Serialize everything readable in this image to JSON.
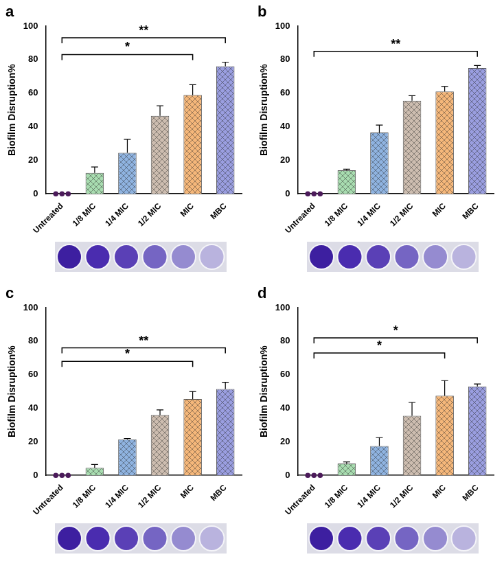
{
  "chart_data": [
    {
      "panel": "a",
      "type": "bar",
      "categories": [
        "Untreated",
        "1/8 MIC",
        "1/4 MIC",
        "1/2 MIC",
        "MIC",
        "MBC"
      ],
      "values": [
        0,
        12.5,
        24.5,
        46.5,
        59,
        76
      ],
      "errors": [
        null,
        3.5,
        8,
        6,
        6,
        2.5
      ],
      "replicates": {
        "category": "Untreated",
        "values": [
          0,
          0,
          0
        ]
      },
      "colors": [
        "#4b1a5a",
        "#a8dcb0",
        "#8fb3e0",
        "#cdbdb0",
        "#f5b77a",
        "#9a9ee0"
      ],
      "y_label": "Biofilm Disruption%",
      "ylim": [
        0,
        100
      ],
      "yticks": [
        0,
        20,
        40,
        60,
        80,
        100
      ],
      "grid": false,
      "annotations": [
        {
          "from": "Untreated",
          "to": "MIC",
          "y": 83,
          "text": "*"
        },
        {
          "from": "Untreated",
          "to": "MBC",
          "y": 93,
          "text": "**"
        }
      ]
    },
    {
      "panel": "b",
      "type": "bar",
      "categories": [
        "Untreated",
        "1/8 MIC",
        "1/4 MIC",
        "1/2 MIC",
        "MIC",
        "MBC"
      ],
      "values": [
        0,
        14,
        36.5,
        55.5,
        61,
        75
      ],
      "errors": [
        null,
        0.7,
        4.5,
        3,
        3,
        1.5
      ],
      "replicates": {
        "category": "Untreated",
        "values": [
          0,
          0,
          0
        ]
      },
      "colors": [
        "#4b1a5a",
        "#a8dcb0",
        "#8fb3e0",
        "#cdbdb0",
        "#f5b77a",
        "#9a9ee0"
      ],
      "y_label": "Biofilm Disruption%",
      "ylim": [
        0,
        100
      ],
      "yticks": [
        0,
        20,
        40,
        60,
        80,
        100
      ],
      "grid": false,
      "annotations": [
        {
          "from": "Untreated",
          "to": "MBC",
          "y": 85,
          "text": "**"
        }
      ]
    },
    {
      "panel": "c",
      "type": "bar",
      "categories": [
        "Untreated",
        "1/8 MIC",
        "1/4 MIC",
        "1/2 MIC",
        "MIC",
        "MBC"
      ],
      "values": [
        0,
        4.5,
        21.5,
        36,
        45.5,
        51.5
      ],
      "errors": [
        null,
        2,
        0.5,
        3,
        4.5,
        4
      ],
      "replicates": {
        "category": "Untreated",
        "values": [
          0,
          0,
          0
        ]
      },
      "colors": [
        "#4b1a5a",
        "#a8dcb0",
        "#8fb3e0",
        "#cdbdb0",
        "#f5b77a",
        "#9a9ee0"
      ],
      "y_label": "Biofilm Disruption%",
      "ylim": [
        0,
        100
      ],
      "yticks": [
        0,
        20,
        40,
        60,
        80,
        100
      ],
      "grid": false,
      "annotations": [
        {
          "from": "Untreated",
          "to": "MIC",
          "y": 68,
          "text": "*"
        },
        {
          "from": "Untreated",
          "to": "MBC",
          "y": 76,
          "text": "**"
        }
      ]
    },
    {
      "panel": "d",
      "type": "bar",
      "categories": [
        "Untreated",
        "1/8 MIC",
        "1/4 MIC",
        "1/2 MIC",
        "MIC",
        "MBC"
      ],
      "values": [
        0,
        7,
        17.5,
        35.5,
        47.5,
        53
      ],
      "errors": [
        null,
        1,
        5,
        8,
        9,
        1.5
      ],
      "replicates": {
        "category": "Untreated",
        "values": [
          0,
          0,
          0
        ]
      },
      "colors": [
        "#4b1a5a",
        "#a8dcb0",
        "#8fb3e0",
        "#cdbdb0",
        "#f5b77a",
        "#9a9ee0"
      ],
      "y_label": "Biofilm Disruption%",
      "ylim": [
        0,
        100
      ],
      "yticks": [
        0,
        20,
        40,
        60,
        80,
        100
      ],
      "grid": false,
      "annotations": [
        {
          "from": "Untreated",
          "to": "MIC",
          "y": 73,
          "text": "*"
        },
        {
          "from": "Untreated",
          "to": "MBC",
          "y": 82,
          "text": "*"
        }
      ]
    }
  ]
}
